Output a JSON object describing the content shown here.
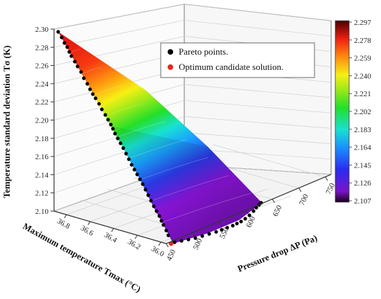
{
  "chart_data": {
    "type": "scatter",
    "subtype": "3d-surface-with-pareto-points",
    "xlabel": "Pressure drop ΔP (Pa)",
    "ylabel": "Maximum temperature Tmax (°C)",
    "zlabel": "Temperature standard deviation Tσ (K)",
    "x_ticks": [
      "450",
      "500",
      "550",
      "600",
      "650",
      "700",
      "750"
    ],
    "y_ticks": [
      "36.0",
      "36.2",
      "36.4",
      "36.6",
      "36.8"
    ],
    "z_ticks": [
      "2.10",
      "2.12",
      "2.14",
      "2.16",
      "2.18",
      "2.20",
      "2.22",
      "2.24",
      "2.26",
      "2.28",
      "2.30"
    ],
    "zlim": [
      2.1,
      2.3
    ],
    "colorbar": {
      "ticks": [
        "2.297",
        "2.278",
        "2.259",
        "2.240",
        "2.221",
        "2.202",
        "2.183",
        "2.164",
        "2.145",
        "2.126",
        "2.107"
      ],
      "range": [
        2.107,
        2.297
      ]
    },
    "legend": {
      "placement": "top-right",
      "entries": [
        {
          "label": "Pareto points.",
          "color": "#000000"
        },
        {
          "label": "Optimum candidate solution.",
          "color": "#e8261d"
        }
      ]
    },
    "grid": true
  }
}
